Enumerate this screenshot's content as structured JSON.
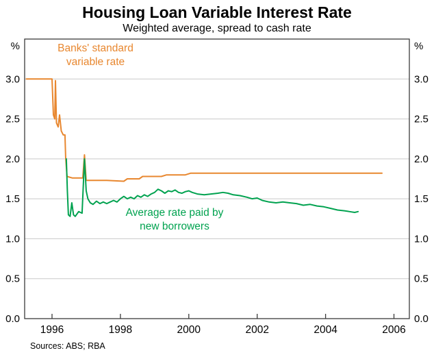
{
  "title": "Housing Loan Variable Interest Rate",
  "subtitle": "Weighted average, spread to cash rate",
  "sources": "Sources: ABS; RBA",
  "chart_data": {
    "type": "line",
    "title": "Housing Loan Variable Interest Rate",
    "subtitle": "Weighted average, spread to cash rate",
    "unit": "%",
    "xlim": [
      1995.2,
      2006.45
    ],
    "ylim": [
      0,
      3.5
    ],
    "grid": true,
    "gridlines": [
      0.5,
      1.0,
      1.5,
      2.0,
      2.5,
      3.0
    ],
    "legend_position": "none",
    "colors": {
      "grid": "#C9C9C9",
      "frame": "#3A3A3A",
      "text": "#000000"
    },
    "x_ticks": [
      {
        "value": 1996,
        "label": "1996"
      },
      {
        "value": 1998,
        "label": "1998"
      },
      {
        "value": 2000,
        "label": "2000"
      },
      {
        "value": 2002,
        "label": "2002"
      },
      {
        "value": 2004,
        "label": "2004"
      },
      {
        "value": 2006,
        "label": "2006"
      }
    ],
    "y_ticks": [
      {
        "value": 0.0,
        "label": "0.0"
      },
      {
        "value": 0.5,
        "label": "0.5"
      },
      {
        "value": 1.0,
        "label": "1.0"
      },
      {
        "value": 1.5,
        "label": "1.5"
      },
      {
        "value": 2.0,
        "label": "2.0"
      },
      {
        "value": 2.5,
        "label": "2.5"
      },
      {
        "value": 3.0,
        "label": "3.0"
      }
    ],
    "series": [
      {
        "name": "Banks' standard variable rate",
        "color": "#E8872F",
        "points": [
          [
            1995.25,
            3.0
          ],
          [
            1996.0,
            3.0
          ],
          [
            1996.04,
            2.55
          ],
          [
            1996.08,
            2.5
          ],
          [
            1996.1,
            2.98
          ],
          [
            1996.13,
            2.45
          ],
          [
            1996.18,
            2.4
          ],
          [
            1996.22,
            2.55
          ],
          [
            1996.27,
            2.35
          ],
          [
            1996.33,
            2.3
          ],
          [
            1996.38,
            2.3
          ],
          [
            1996.4,
            2.02
          ],
          [
            1996.44,
            1.78
          ],
          [
            1996.6,
            1.76
          ],
          [
            1996.9,
            1.76
          ],
          [
            1996.95,
            2.05
          ],
          [
            1997.0,
            1.73
          ],
          [
            1997.6,
            1.73
          ],
          [
            1998.1,
            1.72
          ],
          [
            1998.2,
            1.75
          ],
          [
            1998.55,
            1.75
          ],
          [
            1998.65,
            1.78
          ],
          [
            1999.2,
            1.78
          ],
          [
            1999.35,
            1.8
          ],
          [
            1999.9,
            1.8
          ],
          [
            2000.05,
            1.82
          ],
          [
            2005.65,
            1.82
          ]
        ]
      },
      {
        "name": "Average rate paid by new borrowers",
        "color": "#00A24F",
        "points": [
          [
            1996.42,
            2.0
          ],
          [
            1996.45,
            1.6
          ],
          [
            1996.48,
            1.3
          ],
          [
            1996.53,
            1.28
          ],
          [
            1996.58,
            1.45
          ],
          [
            1996.63,
            1.3
          ],
          [
            1996.68,
            1.28
          ],
          [
            1996.78,
            1.34
          ],
          [
            1996.88,
            1.32
          ],
          [
            1996.95,
            2.0
          ],
          [
            1997.0,
            1.6
          ],
          [
            1997.05,
            1.5
          ],
          [
            1997.12,
            1.45
          ],
          [
            1997.2,
            1.43
          ],
          [
            1997.3,
            1.47
          ],
          [
            1997.4,
            1.44
          ],
          [
            1997.5,
            1.46
          ],
          [
            1997.6,
            1.44
          ],
          [
            1997.7,
            1.46
          ],
          [
            1997.8,
            1.48
          ],
          [
            1997.9,
            1.46
          ],
          [
            1998.0,
            1.5
          ],
          [
            1998.1,
            1.53
          ],
          [
            1998.2,
            1.5
          ],
          [
            1998.3,
            1.52
          ],
          [
            1998.4,
            1.5
          ],
          [
            1998.5,
            1.54
          ],
          [
            1998.6,
            1.52
          ],
          [
            1998.7,
            1.55
          ],
          [
            1998.8,
            1.53
          ],
          [
            1998.9,
            1.56
          ],
          [
            1999.0,
            1.58
          ],
          [
            1999.1,
            1.62
          ],
          [
            1999.2,
            1.6
          ],
          [
            1999.3,
            1.57
          ],
          [
            1999.4,
            1.6
          ],
          [
            1999.5,
            1.59
          ],
          [
            1999.6,
            1.61
          ],
          [
            1999.7,
            1.58
          ],
          [
            1999.8,
            1.57
          ],
          [
            1999.9,
            1.59
          ],
          [
            2000.0,
            1.6
          ],
          [
            2000.1,
            1.58
          ],
          [
            2000.25,
            1.56
          ],
          [
            2000.45,
            1.55
          ],
          [
            2000.65,
            1.56
          ],
          [
            2000.85,
            1.57
          ],
          [
            2001.0,
            1.58
          ],
          [
            2001.15,
            1.57
          ],
          [
            2001.3,
            1.55
          ],
          [
            2001.5,
            1.54
          ],
          [
            2001.7,
            1.52
          ],
          [
            2001.85,
            1.5
          ],
          [
            2002.0,
            1.51
          ],
          [
            2002.15,
            1.48
          ],
          [
            2002.35,
            1.46
          ],
          [
            2002.55,
            1.45
          ],
          [
            2002.75,
            1.46
          ],
          [
            2002.95,
            1.45
          ],
          [
            2003.15,
            1.44
          ],
          [
            2003.35,
            1.42
          ],
          [
            2003.55,
            1.43
          ],
          [
            2003.75,
            1.41
          ],
          [
            2003.95,
            1.4
          ],
          [
            2004.15,
            1.38
          ],
          [
            2004.35,
            1.36
          ],
          [
            2004.55,
            1.35
          ],
          [
            2004.7,
            1.34
          ],
          [
            2004.85,
            1.33
          ],
          [
            2004.95,
            1.34
          ]
        ]
      }
    ],
    "annotations": [
      {
        "text": "Banks' standard\nvariable rate",
        "color": "#E8872F"
      },
      {
        "text": "Average rate paid by\nnew borrowers",
        "color": "#00A24F"
      }
    ]
  }
}
